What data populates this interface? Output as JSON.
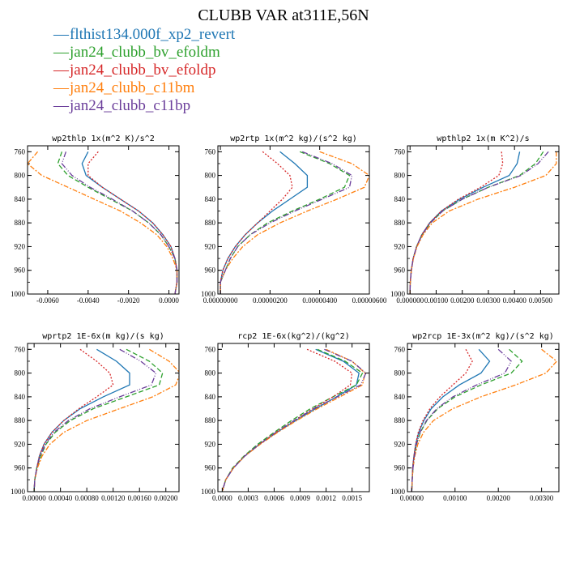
{
  "title": "CLUBB VAR at311E,56N",
  "legend": [
    {
      "label": "flthist134.000f_xp2_revert",
      "color": "#1f77b4",
      "dash": "none"
    },
    {
      "label": "jan24_clubb_bv_efoldm",
      "color": "#2ca02c",
      "dash": "6,3"
    },
    {
      "label": "jan24_clubb_bv_efoldp",
      "color": "#d62728",
      "dash": "2,2"
    },
    {
      "label": "jan24_clubb_c11bm",
      "color": "#ff7f0e",
      "dash": "6,2,2,2"
    },
    {
      "label": "jan24_clubb_c11bp",
      "color": "#6a3d9a",
      "dash": "7,2,1,2,1,2"
    }
  ],
  "chart_data": [
    {
      "type": "line",
      "title": "wp2thlp  1x(m^2 K)/s^2",
      "xlim": [
        -0.007,
        0.0005
      ],
      "ylim": [
        1000,
        750
      ],
      "xticks": [
        -0.006,
        -0.004,
        -0.002,
        0.0
      ],
      "xticklabels": [
        "-0.0060",
        "-0.0040",
        "-0.0020",
        "0.0000"
      ],
      "yticks": [
        760,
        800,
        840,
        880,
        920,
        960,
        1000
      ],
      "yticklabels": [
        "760",
        "800",
        "840",
        "880",
        "920",
        "960",
        "1000"
      ],
      "y": [
        760,
        780,
        800,
        820,
        840,
        860,
        880,
        900,
        920,
        940,
        960,
        980,
        1000
      ],
      "series": [
        {
          "x": [
            -0.004,
            -0.0043,
            -0.0041,
            -0.0033,
            -0.0024,
            -0.0015,
            -0.0008,
            -0.0003,
            0.0001,
            0.0003,
            0.0004,
            0.0004,
            0.0003
          ]
        },
        {
          "x": [
            -0.0053,
            -0.0055,
            -0.005,
            -0.004,
            -0.0029,
            -0.0018,
            -0.001,
            -0.0004,
            0.0,
            0.0003,
            0.0004,
            0.0004,
            0.0003
          ]
        },
        {
          "x": [
            -0.0035,
            -0.004,
            -0.004,
            -0.0033,
            -0.0024,
            -0.0015,
            -0.0008,
            -0.0003,
            0.0001,
            0.0003,
            0.0004,
            0.0004,
            0.0003
          ]
        },
        {
          "x": [
            -0.0065,
            -0.007,
            -0.0063,
            -0.005,
            -0.0037,
            -0.0024,
            -0.0014,
            -0.0006,
            -0.0001,
            0.0002,
            0.0004,
            0.0004,
            0.0003
          ]
        },
        {
          "x": [
            -0.0051,
            -0.0053,
            -0.0048,
            -0.0039,
            -0.0028,
            -0.0018,
            -0.001,
            -0.0004,
            0.0,
            0.0003,
            0.0004,
            0.0004,
            0.0003
          ]
        }
      ]
    },
    {
      "type": "line",
      "title": "wp2rtp  1x(m^2 kg)/(s^2 kg)",
      "xlim": [
        -1e-07,
        6e-06
      ],
      "ylim": [
        1000,
        750
      ],
      "xticks": [
        0.0,
        2e-06,
        4e-06,
        6e-06
      ],
      "xticklabels": [
        "0.00000000",
        "0.00000200",
        "0.00000400",
        "0.00000600"
      ],
      "yticks": [
        760,
        800,
        840,
        880,
        920,
        960,
        1000
      ],
      "yticklabels": [
        "760",
        "800",
        "840",
        "880",
        "920",
        "960",
        "1000"
      ],
      "y": [
        760,
        780,
        800,
        820,
        840,
        860,
        880,
        900,
        920,
        940,
        960,
        980,
        1000
      ],
      "series": [
        {
          "x": [
            2.4e-06,
            3e-06,
            3.5e-06,
            3.5e-06,
            2.8e-06,
            2.1e-06,
            1.5e-06,
            1e-06,
            6e-07,
            3e-07,
            1e-07,
            0.0,
            0.0
          ]
        },
        {
          "x": [
            3.2e-06,
            4.4e-06,
            5.2e-06,
            5e-06,
            4e-06,
            2.9e-06,
            1.9e-06,
            1.2e-06,
            7e-07,
            4e-07,
            2e-07,
            0.0,
            0.0
          ]
        },
        {
          "x": [
            1.7e-06,
            2.3e-06,
            2.8e-06,
            2.9e-06,
            2.5e-06,
            2e-06,
            1.5e-06,
            1e-06,
            6e-07,
            3e-07,
            1e-07,
            0.0,
            0.0
          ]
        },
        {
          "x": [
            4e-06,
            5.3e-06,
            6e-06,
            5.8e-06,
            4.7e-06,
            3.5e-06,
            2.4e-06,
            1.5e-06,
            9e-07,
            5e-07,
            2e-07,
            0.0,
            0.0
          ]
        },
        {
          "x": [
            3.3e-06,
            4.5e-06,
            5.3e-06,
            5.2e-06,
            4.1e-06,
            3e-06,
            2e-06,
            1.2e-06,
            7e-07,
            4e-07,
            2e-07,
            0.0,
            0.0
          ]
        }
      ]
    },
    {
      "type": "line",
      "title": "wpthlp2  1x(m K^2)/s",
      "xlim": [
        -0.0001,
        0.0057
      ],
      "ylim": [
        1000,
        750
      ],
      "xticks": [
        0.0,
        0.001,
        0.002,
        0.003,
        0.004,
        0.005
      ],
      "xticklabels": [
        "0.000000",
        "0.00100",
        "0.00200",
        "0.00300",
        "0.00400",
        "0.00500"
      ],
      "yticks": [
        760,
        800,
        840,
        880,
        920,
        960,
        1000
      ],
      "yticklabels": [
        "760",
        "800",
        "840",
        "880",
        "920",
        "960",
        "1000"
      ],
      "y": [
        760,
        780,
        800,
        820,
        840,
        860,
        880,
        900,
        920,
        940,
        960,
        980,
        1000
      ],
      "series": [
        {
          "x": [
            0.0042,
            0.0041,
            0.0038,
            0.0028,
            0.0019,
            0.0012,
            0.00075,
            0.00045,
            0.00025,
            0.00012,
            5e-05,
            1e-05,
            0.0
          ]
        },
        {
          "x": [
            0.0051,
            0.0048,
            0.0042,
            0.003,
            0.002,
            0.00125,
            0.00078,
            0.00046,
            0.00025,
            0.00012,
            5e-05,
            1e-05,
            0.0
          ]
        },
        {
          "x": [
            0.0035,
            0.00355,
            0.0034,
            0.0027,
            0.00185,
            0.0012,
            0.00075,
            0.00045,
            0.00025,
            0.00012,
            5e-05,
            1e-05,
            0.0
          ]
        },
        {
          "x": [
            0.0056,
            0.0056,
            0.0052,
            0.004,
            0.0026,
            0.0015,
            0.00085,
            0.0005,
            0.00027,
            0.00013,
            5e-05,
            1e-05,
            0.0
          ]
        },
        {
          "x": [
            0.0053,
            0.0049,
            0.00425,
            0.003,
            0.002,
            0.00125,
            0.00078,
            0.00046,
            0.00025,
            0.00012,
            5e-05,
            1e-05,
            0.0
          ]
        }
      ]
    },
    {
      "type": "line",
      "title": "wprtp2  1E-6x(m kg)/(s kg)",
      "xlim": [
        -0.0001,
        0.0022
      ],
      "ylim": [
        1000,
        750
      ],
      "xticks": [
        0.0,
        0.0004,
        0.0008,
        0.0012,
        0.0016,
        0.002
      ],
      "xticklabels": [
        "0.00000",
        "0.00040",
        "0.00080",
        "0.00120",
        "0.00160",
        "0.00200"
      ],
      "yticks": [
        760,
        800,
        840,
        880,
        920,
        960,
        1000
      ],
      "yticklabels": [
        "760",
        "800",
        "840",
        "880",
        "920",
        "960",
        "1000"
      ],
      "y": [
        760,
        780,
        800,
        820,
        840,
        860,
        880,
        900,
        920,
        940,
        960,
        980,
        1000
      ],
      "series": [
        {
          "x": [
            0.00095,
            0.00125,
            0.00145,
            0.00145,
            0.00105,
            0.0007,
            0.00045,
            0.00027,
            0.00015,
            8e-05,
            4e-05,
            1e-05,
            0.0
          ]
        },
        {
          "x": [
            0.0014,
            0.00175,
            0.00195,
            0.0019,
            0.0014,
            0.0009,
            0.00055,
            0.00032,
            0.00018,
            0.0001,
            4e-05,
            1e-05,
            0.0
          ]
        },
        {
          "x": [
            0.0007,
            0.00095,
            0.00115,
            0.0012,
            0.00095,
            0.00068,
            0.00045,
            0.00027,
            0.00015,
            8e-05,
            4e-05,
            1e-05,
            0.0
          ]
        },
        {
          "x": [
            0.00175,
            0.00205,
            0.00222,
            0.00215,
            0.0018,
            0.0013,
            0.0008,
            0.00045,
            0.00024,
            0.00012,
            5e-05,
            1e-05,
            0.0
          ]
        },
        {
          "x": [
            0.0013,
            0.00162,
            0.00185,
            0.00178,
            0.0013,
            0.00085,
            0.00052,
            0.0003,
            0.00017,
            9e-05,
            4e-05,
            1e-05,
            0.0
          ]
        }
      ]
    },
    {
      "type": "line",
      "title": "rcp2  1E-6x(kg^2)/(kg^2)",
      "xlim": [
        -5e-05,
        0.0017
      ],
      "ylim": [
        1000,
        750
      ],
      "xticks": [
        0.0,
        0.0003,
        0.0006,
        0.0009,
        0.0012,
        0.0015
      ],
      "xticklabels": [
        "0.0000",
        "0.0003",
        "0.0006",
        "0.0009",
        "0.0012",
        "0.0015"
      ],
      "yticks": [
        760,
        800,
        840,
        880,
        920,
        960,
        1000
      ],
      "yticklabels": [
        "760",
        "800",
        "840",
        "880",
        "920",
        "960",
        "1000"
      ],
      "y": [
        760,
        780,
        800,
        820,
        840,
        860,
        880,
        900,
        920,
        940,
        960,
        980,
        1000
      ],
      "series": [
        {
          "x": [
            0.00108,
            0.0014,
            0.00158,
            0.00155,
            0.00132,
            0.00108,
            0.00085,
            0.00063,
            0.00043,
            0.00026,
            0.00013,
            4e-05,
            0.0
          ]
        },
        {
          "x": [
            0.0011,
            0.00142,
            0.00162,
            0.00155,
            0.00128,
            0.00102,
            0.0008,
            0.0006,
            0.00041,
            0.00025,
            0.00012,
            4e-05,
            0.0
          ]
        },
        {
          "x": [
            0.00098,
            0.0013,
            0.0015,
            0.00148,
            0.00128,
            0.00105,
            0.00083,
            0.00062,
            0.00043,
            0.00026,
            0.00013,
            4e-05,
            0.0
          ]
        },
        {
          "x": [
            0.0012,
            0.0015,
            0.00165,
            0.00162,
            0.00136,
            0.0011,
            0.00086,
            0.00064,
            0.00044,
            0.00026,
            0.00013,
            4e-05,
            0.0
          ]
        },
        {
          "x": [
            0.00118,
            0.0015,
            0.00166,
            0.0016,
            0.00133,
            0.00106,
            0.00083,
            0.00062,
            0.00043,
            0.00026,
            0.00013,
            4e-05,
            0.0
          ]
        }
      ]
    },
    {
      "type": "line",
      "title": "wp2rcp  1E-3x(m^2 kg)/(s^2 kg)",
      "xlim": [
        -0.0001,
        0.0034
      ],
      "ylim": [
        1000,
        750
      ],
      "xticks": [
        0.0,
        0.001,
        0.002,
        0.003
      ],
      "xticklabels": [
        "0.00000",
        "0.00100",
        "0.00200",
        "0.00300"
      ],
      "yticks": [
        760,
        800,
        840,
        880,
        920,
        960,
        1000
      ],
      "yticklabels": [
        "760",
        "800",
        "840",
        "880",
        "920",
        "960",
        "1000"
      ],
      "y": [
        760,
        780,
        800,
        820,
        840,
        860,
        880,
        900,
        920,
        940,
        960,
        980,
        1000
      ],
      "series": [
        {
          "x": [
            0.00155,
            0.0018,
            0.0016,
            0.0011,
            0.00072,
            0.00045,
            0.00028,
            0.00016,
            9e-05,
            5e-05,
            2e-05,
            1e-05,
            0.0
          ]
        },
        {
          "x": [
            0.00225,
            0.00255,
            0.0023,
            0.0016,
            0.001,
            0.0006,
            0.00035,
            0.0002,
            0.00011,
            6e-05,
            3e-05,
            1e-05,
            0.0
          ]
        },
        {
          "x": [
            0.00125,
            0.0014,
            0.00125,
            0.00095,
            0.00065,
            0.00042,
            0.00026,
            0.00015,
            9e-05,
            5e-05,
            2e-05,
            1e-05,
            0.0
          ]
        },
        {
          "x": [
            0.003,
            0.00335,
            0.0031,
            0.0024,
            0.0016,
            0.00095,
            0.0005,
            0.00027,
            0.00014,
            7e-05,
            3e-05,
            1e-05,
            0.0
          ]
        },
        {
          "x": [
            0.002,
            0.0023,
            0.00215,
            0.0015,
            0.00095,
            0.00058,
            0.00034,
            0.00019,
            0.00011,
            6e-05,
            3e-05,
            1e-05,
            0.0
          ]
        }
      ]
    }
  ]
}
